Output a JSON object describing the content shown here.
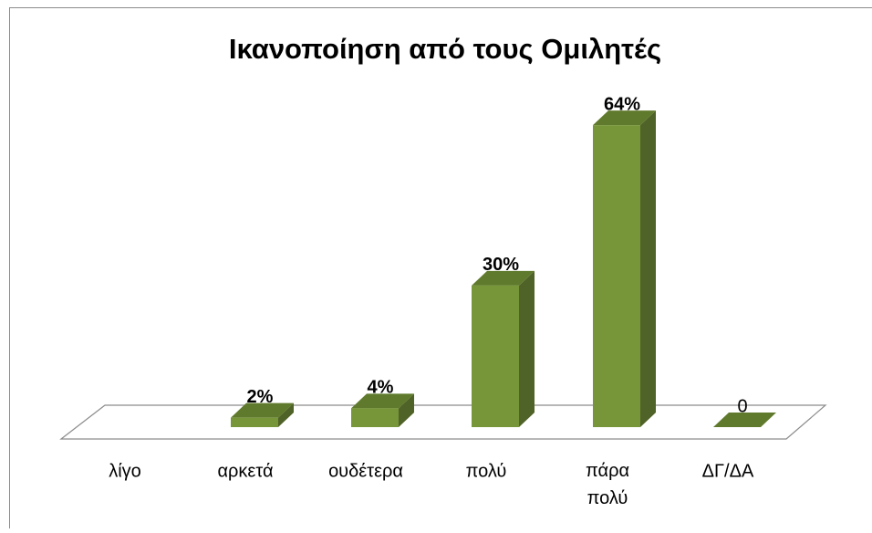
{
  "chart_data": {
    "type": "bar3d",
    "title": "Ικανοποίηση από τους Ομιλητές",
    "categories": [
      "λίγο",
      "αρκετά",
      "ουδέτερα",
      "πολύ",
      "πάρα πολύ",
      "ΔΓ/ΔΑ"
    ],
    "values": [
      null,
      2,
      4,
      30,
      64,
      0
    ],
    "value_labels": [
      null,
      "2%",
      "4%",
      "30%",
      "64%",
      "0"
    ],
    "color": "#77963a"
  }
}
